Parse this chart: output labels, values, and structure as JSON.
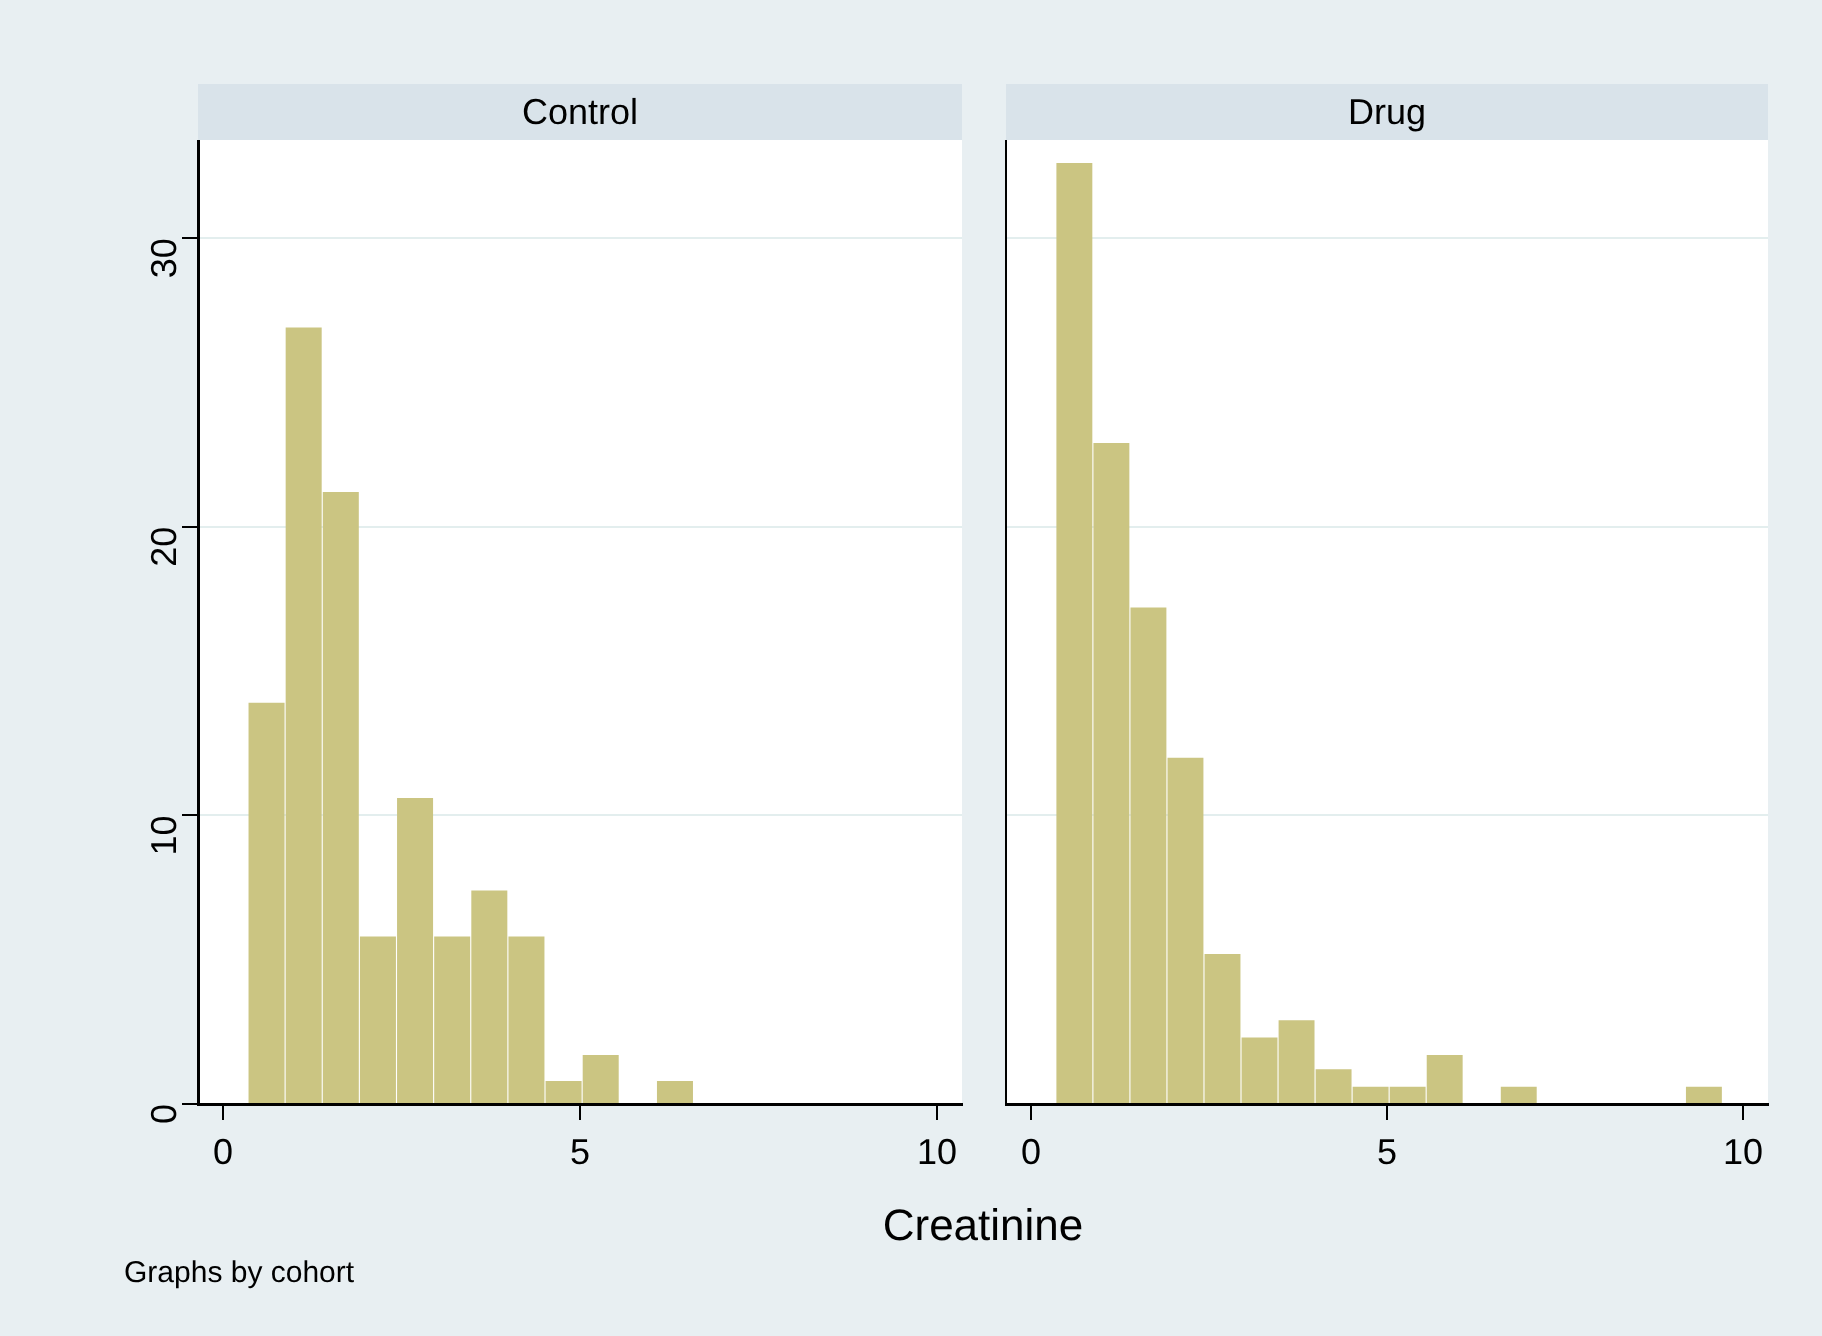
{
  "chart_data": [
    {
      "type": "histogram",
      "title": "Control",
      "xlabel": "Creatinine",
      "annotations": [
        "Graphs by cohort"
      ],
      "bins": [
        0.35,
        0.87,
        1.39,
        1.91,
        2.43,
        2.95,
        3.47,
        3.99,
        4.51,
        5.03,
        5.55,
        6.07,
        6.59
      ],
      "values": [
        13.9,
        26.9,
        21.2,
        5.8,
        10.6,
        5.8,
        7.4,
        5.8,
        0.8,
        1.7,
        0,
        0.8
      ],
      "color": "#cbc582",
      "xlim": [
        -0.35,
        10.35
      ],
      "xticks": [
        0,
        5,
        10
      ],
      "ylim": [
        0,
        33.4
      ],
      "yticks": [
        0,
        10,
        20,
        30
      ],
      "grid": "y",
      "legend": false
    },
    {
      "type": "histogram",
      "title": "Drug",
      "bins": [
        0.35,
        0.87,
        1.39,
        1.91,
        2.43,
        2.95,
        3.47,
        3.99,
        4.51,
        5.03,
        5.55,
        6.07,
        6.59,
        7.11,
        9.19,
        9.71
      ],
      "values": [
        32.6,
        22.9,
        17.2,
        12.0,
        5.2,
        2.3,
        2.9,
        1.2,
        0.6,
        0.6,
        1.7,
        0,
        0.6,
        0,
        0.6
      ],
      "color": "#cbc582",
      "xlim": [
        -0.35,
        10.35
      ],
      "xticks": [
        0,
        5,
        10
      ],
      "ylim": [
        0,
        33.4
      ],
      "yticks": [
        0,
        10,
        20,
        30
      ],
      "grid": "y",
      "tick_labels": "x",
      "legend": false
    }
  ]
}
